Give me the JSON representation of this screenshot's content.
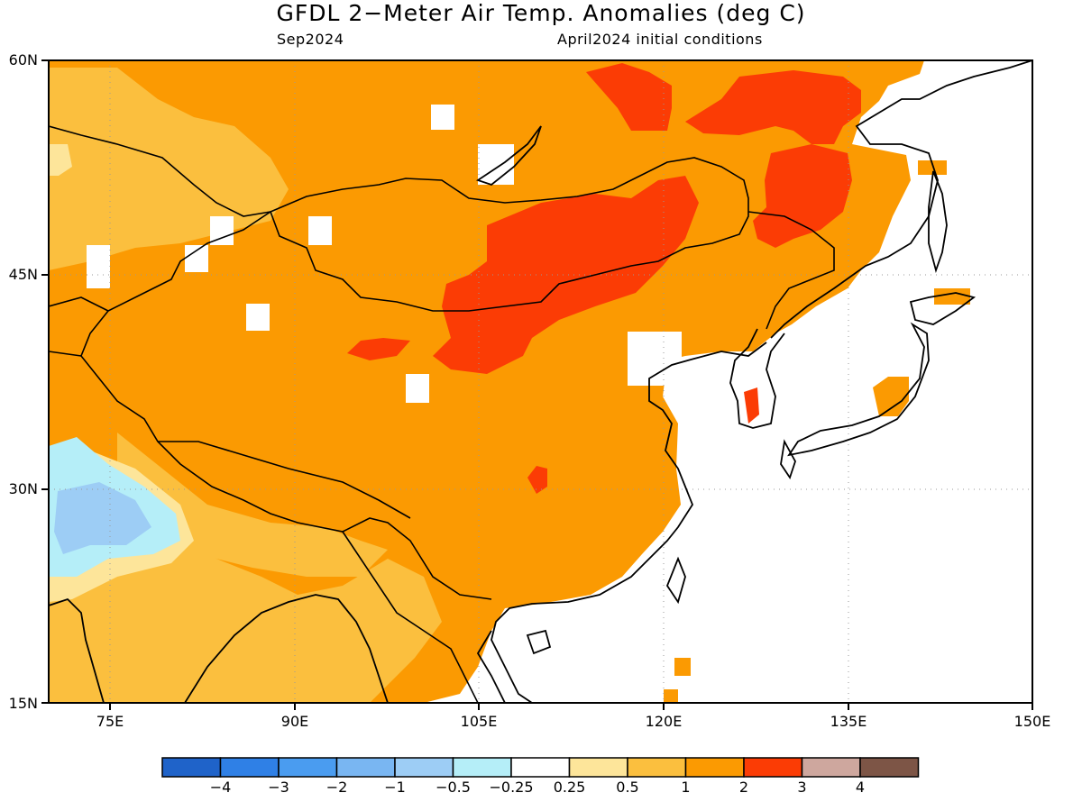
{
  "title": "GFDL 2−Meter Air Temp. Anomalies (deg C)",
  "subtitle_left": "Sep2024",
  "subtitle_right": "April2024 initial conditions",
  "map": {
    "lat_range": [
      15,
      60
    ],
    "lon_range": [
      70,
      150
    ],
    "lat_ticks": [
      "60N",
      "45N",
      "30N",
      "15N"
    ],
    "lon_ticks": [
      "75E",
      "90E",
      "105E",
      "120E",
      "135E",
      "150E"
    ],
    "grid": "dotted"
  },
  "colorbar": {
    "labels": [
      "−4",
      "−3",
      "−2",
      "−1",
      "−0.5",
      "−0.25",
      "0.25",
      "0.5",
      "1",
      "2",
      "3",
      "4"
    ],
    "colors": [
      "#1f63c9",
      "#2f80e6",
      "#4a9cf0",
      "#79b6f2",
      "#9dcdf5",
      "#b5eef8",
      "#ffffff",
      "#fde59a",
      "#fbbf3e",
      "#fb9a02",
      "#fb3c05",
      "#cea79e",
      "#7d5546"
    ]
  },
  "palette": {
    "ocean": "#ffffff",
    "bg_orange": "#fb9a02",
    "light_orange": "#fbbf3e",
    "yellow": "#fde59a",
    "light_blue": "#b5eef8",
    "blue": "#9dcdf5",
    "red": "#fb3c05"
  }
}
